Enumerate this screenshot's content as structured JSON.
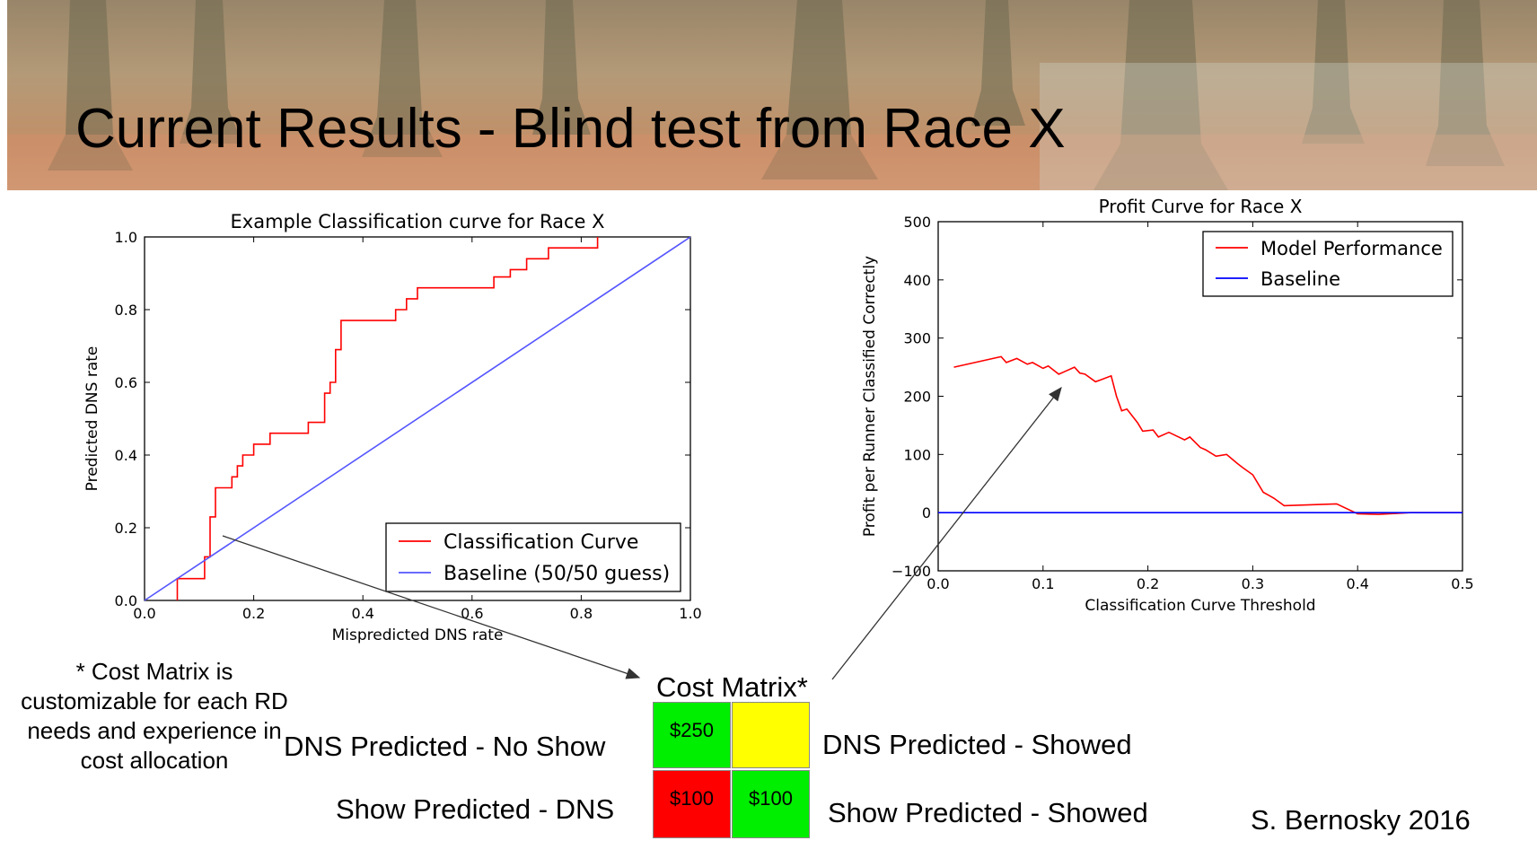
{
  "slide": {
    "title": "Current Results - Blind test from Race X",
    "note": "* Cost Matrix is customizable for each RD needs and experience in cost allocation",
    "author": "S. Bernosky 2016"
  },
  "cost_matrix": {
    "title": "Cost Matrix*",
    "row_labels": [
      "DNS Predicted - No Show",
      "Show Predicted - DNS"
    ],
    "col_labels": [
      "DNS Predicted - Showed",
      "Show Predicted - Showed"
    ],
    "cells": [
      {
        "value": "$250",
        "color": "#00ee00"
      },
      {
        "value": "",
        "color": "#ffff00"
      },
      {
        "value": "$100",
        "color": "#ff0000"
      },
      {
        "value": "$100",
        "color": "#00ee00"
      }
    ]
  },
  "chart_data": [
    {
      "type": "line",
      "title": "Example Classification curve for Race X",
      "xlabel": "Mispredicted DNS rate",
      "ylabel": "Predicted DNS rate",
      "xlim": [
        0,
        1
      ],
      "ylim": [
        0,
        1
      ],
      "xticks": [
        "0.0",
        "0.2",
        "0.4",
        "0.6",
        "0.8",
        "1.0"
      ],
      "yticks": [
        "0.0",
        "0.2",
        "0.4",
        "0.6",
        "0.8",
        "1.0"
      ],
      "legend_position": "lower-right",
      "grid": false,
      "series": [
        {
          "name": "Classification Curve",
          "color": "#ff0000",
          "x": [
            0.06,
            0.06,
            0.11,
            0.11,
            0.12,
            0.12,
            0.13,
            0.13,
            0.16,
            0.16,
            0.17,
            0.17,
            0.18,
            0.18,
            0.2,
            0.2,
            0.23,
            0.23,
            0.26,
            0.26,
            0.3,
            0.3,
            0.33,
            0.33,
            0.34,
            0.34,
            0.35,
            0.35,
            0.36,
            0.36,
            0.46,
            0.46,
            0.48,
            0.48,
            0.5,
            0.5,
            0.51,
            0.51,
            0.64,
            0.64,
            0.67,
            0.67,
            0.7,
            0.7,
            0.74,
            0.74,
            0.75,
            0.75,
            0.83,
            0.83
          ],
          "y": [
            0.0,
            0.06,
            0.06,
            0.12,
            0.12,
            0.23,
            0.23,
            0.31,
            0.31,
            0.34,
            0.34,
            0.37,
            0.37,
            0.4,
            0.4,
            0.43,
            0.43,
            0.46,
            0.46,
            0.46,
            0.46,
            0.49,
            0.49,
            0.57,
            0.57,
            0.6,
            0.6,
            0.69,
            0.69,
            0.77,
            0.77,
            0.8,
            0.8,
            0.83,
            0.83,
            0.86,
            0.86,
            0.86,
            0.86,
            0.89,
            0.89,
            0.91,
            0.91,
            0.94,
            0.94,
            0.97,
            0.97,
            0.97,
            0.97,
            1.0
          ]
        },
        {
          "name": "Baseline (50/50 guess)",
          "color": "#5555ff",
          "x": [
            0,
            1
          ],
          "y": [
            0,
            1
          ]
        }
      ]
    },
    {
      "type": "line",
      "title": "Profit Curve for Race X",
      "xlabel": "Classification Curve Threshold",
      "ylabel": "Profit per Runner Classified Correctly",
      "xlim": [
        0,
        0.5
      ],
      "ylim": [
        -100,
        500
      ],
      "xticks": [
        "0.0",
        "0.1",
        "0.2",
        "0.3",
        "0.4",
        "0.5"
      ],
      "yticks": [
        "−100",
        "0",
        "100",
        "200",
        "300",
        "400",
        "500"
      ],
      "legend_position": "upper-right",
      "grid": false,
      "series": [
        {
          "name": "Model Performance",
          "color": "#ff0000",
          "x": [
            0.015,
            0.06,
            0.065,
            0.075,
            0.085,
            0.09,
            0.1,
            0.105,
            0.115,
            0.12,
            0.13,
            0.135,
            0.14,
            0.15,
            0.155,
            0.165,
            0.17,
            0.175,
            0.18,
            0.19,
            0.195,
            0.205,
            0.21,
            0.22,
            0.235,
            0.24,
            0.25,
            0.255,
            0.265,
            0.275,
            0.285,
            0.29,
            0.3,
            0.31,
            0.315,
            0.32,
            0.33,
            0.38,
            0.4,
            0.42,
            0.45,
            0.5
          ],
          "y": [
            250,
            268,
            258,
            265,
            255,
            258,
            248,
            252,
            238,
            242,
            250,
            240,
            238,
            225,
            228,
            235,
            200,
            175,
            178,
            155,
            140,
            142,
            130,
            138,
            125,
            130,
            112,
            108,
            97,
            100,
            85,
            78,
            65,
            35,
            30,
            25,
            12,
            15,
            -2,
            -3,
            0,
            0
          ]
        },
        {
          "name": "Baseline",
          "color": "#0000ff",
          "x": [
            0,
            0.5
          ],
          "y": [
            0,
            0
          ]
        }
      ]
    }
  ]
}
